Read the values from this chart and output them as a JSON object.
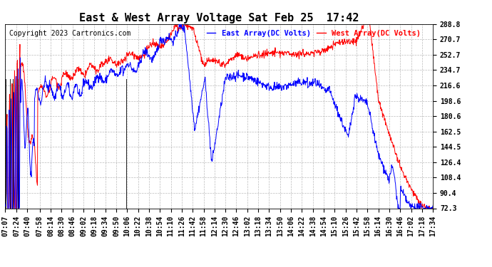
{
  "title": "East & West Array Voltage Sat Feb 25  17:42",
  "legend_east": "East Array(DC Volts)",
  "legend_west": "West Array(DC Volts)",
  "copyright": "Copyright 2023 Cartronics.com",
  "east_color": "blue",
  "west_color": "red",
  "background_color": "#ffffff",
  "grid_color": "#aaaaaa",
  "ymin": 72.3,
  "ymax": 288.8,
  "yticks": [
    72.3,
    90.4,
    108.4,
    126.4,
    144.5,
    162.5,
    180.6,
    198.6,
    216.6,
    234.7,
    252.7,
    270.7,
    288.8
  ],
  "xtick_labels": [
    "07:07",
    "07:24",
    "07:40",
    "07:58",
    "08:14",
    "08:30",
    "08:46",
    "09:02",
    "09:18",
    "09:34",
    "09:50",
    "10:06",
    "10:22",
    "10:38",
    "10:54",
    "11:10",
    "11:26",
    "11:42",
    "11:58",
    "12:14",
    "12:30",
    "12:46",
    "13:02",
    "13:18",
    "13:34",
    "13:50",
    "14:06",
    "14:22",
    "14:38",
    "14:54",
    "15:10",
    "15:26",
    "15:42",
    "15:58",
    "16:14",
    "16:30",
    "16:46",
    "17:02",
    "17:18",
    "17:34"
  ],
  "title_fontsize": 11,
  "label_fontsize": 7.5,
  "tick_fontsize": 7,
  "copyright_fontsize": 7
}
